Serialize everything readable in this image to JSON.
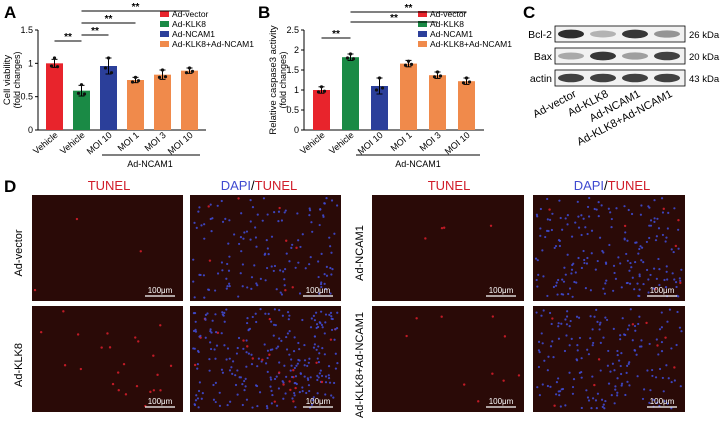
{
  "colors": {
    "red": "#e8242c",
    "green": "#1a8a45",
    "blue": "#2b3f9a",
    "orange": "#f08a4b",
    "tunel_red": "#d01d2a",
    "dapi_blue": "#3f4ad0",
    "micro_bg": "#2a0a07",
    "blot_bg": "#f2f2f2",
    "blot_band": "#222222"
  },
  "panelA": {
    "letter": "A",
    "legend": [
      "Ad-vector",
      "Ad-KLK8",
      "Ad-NCAM1",
      "Ad-KLK8+Ad-NCAM1"
    ],
    "group_label": "Ad-NCAM1",
    "sig": [
      "**",
      "**",
      "**",
      "**"
    ]
  },
  "panelB": {
    "letter": "B",
    "legend": [
      "Ad-vector",
      "Ad-KLK8",
      "Ad-NCAM1",
      "Ad-KLK8+Ad-NCAM1"
    ],
    "group_label": "Ad-NCAM1",
    "sig": [
      "**",
      "**",
      "**"
    ]
  },
  "panelC": {
    "letter": "C",
    "rows": [
      {
        "label": "Bcl-2",
        "kda": "26 kDa"
      },
      {
        "label": "Bax",
        "kda": "20 kDa"
      },
      {
        "label": "actin",
        "kda": "43 kDa"
      }
    ],
    "lanes": [
      "Ad-vector",
      "Ad-KLK8",
      "Ad-NCAM1",
      "Ad-KLK8+Ad-NCAM1"
    ],
    "band_intensity": {
      "Bcl-2": [
        0.95,
        0.3,
        0.9,
        0.45
      ],
      "Bax": [
        0.35,
        0.9,
        0.4,
        0.85
      ],
      "actin": [
        0.85,
        0.85,
        0.85,
        0.85
      ]
    }
  },
  "panelD": {
    "letter": "D",
    "headers": {
      "tunel": "TUNEL",
      "dapi": "DAPI",
      "slash": "/",
      "tunel2": "TUNEL"
    },
    "row_labels": [
      "Ad-vector",
      "Ad-KLK8",
      "Ad-NCAM1",
      "Ad-KLK8+Ad-NCAM1"
    ],
    "scale": "100μm"
  },
  "chart_data": [
    {
      "type": "bar",
      "categories": [
        "Vehicle",
        "Vehicle",
        "MOI 10",
        "MOI 1",
        "MOI 3",
        "MOI 10"
      ],
      "series_colors": [
        "red",
        "green",
        "blue",
        "orange",
        "orange",
        "orange"
      ],
      "values": [
        1.0,
        0.59,
        0.96,
        0.75,
        0.83,
        0.89
      ],
      "errors": [
        0.06,
        0.08,
        0.12,
        0.04,
        0.07,
        0.04
      ],
      "points": [
        [
          1.08,
          0.96,
          0.95
        ],
        [
          0.68,
          0.55,
          0.54
        ],
        [
          1.08,
          0.93,
          0.86
        ],
        [
          0.79,
          0.72,
          0.74
        ],
        [
          0.9,
          0.79,
          0.8
        ],
        [
          0.93,
          0.86,
          0.88
        ]
      ],
      "ylabel_lines": [
        "Cell viability",
        "(fold changes)"
      ],
      "ylim": [
        0,
        1.5
      ],
      "yticks": [
        0,
        0.5,
        1,
        1.5
      ],
      "ytick_labels": [
        "0",
        "0.5",
        "1",
        "1.5"
      ]
    },
    {
      "type": "bar",
      "categories": [
        "Vehicle",
        "Vehicle",
        "MOI 10",
        "MOI 1",
        "MOI 3",
        "MOI 10"
      ],
      "series_colors": [
        "red",
        "green",
        "blue",
        "orange",
        "orange",
        "orange"
      ],
      "values": [
        1.0,
        1.82,
        1.1,
        1.66,
        1.37,
        1.22
      ],
      "errors": [
        0.08,
        0.08,
        0.2,
        0.08,
        0.08,
        0.08
      ],
      "points": [
        [
          1.08,
          0.95,
          0.97
        ],
        [
          1.9,
          1.8,
          1.78
        ],
        [
          1.3,
          1.0,
          1.05
        ],
        [
          1.72,
          1.62,
          1.64
        ],
        [
          1.45,
          1.33,
          1.35
        ],
        [
          1.3,
          1.18,
          1.2
        ]
      ],
      "ylabel_lines": [
        "Relative caspase3 activity",
        "(fold changes)"
      ],
      "ylim": [
        0,
        2.5
      ],
      "yticks": [
        0,
        0.5,
        1,
        1.5,
        2,
        2.5
      ],
      "ytick_labels": [
        "0",
        "0.5",
        "1",
        "1.5",
        "2",
        "2.5"
      ]
    }
  ]
}
